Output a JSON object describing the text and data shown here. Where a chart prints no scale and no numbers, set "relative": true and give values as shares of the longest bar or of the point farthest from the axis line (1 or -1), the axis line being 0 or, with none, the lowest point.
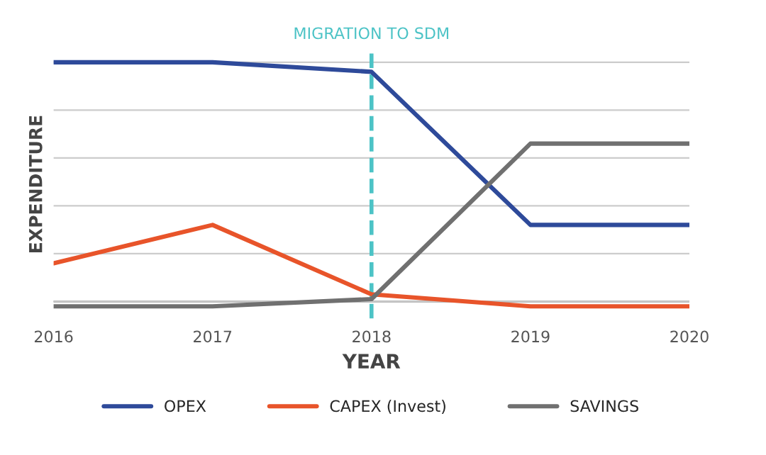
{
  "chart_data": {
    "type": "line",
    "relative": true,
    "xlabel": "YEAR",
    "ylabel": "EXPENDITURE",
    "categories": [
      "2016",
      "2017",
      "2018",
      "2019",
      "2020"
    ],
    "series": [
      {
        "name": "OPEX",
        "color": "#2e4a9a",
        "values": [
          1,
          1,
          0.96,
          0.32,
          0.32
        ]
      },
      {
        "name": "CAPEX (Invest)",
        "color": "#e8542a",
        "values": [
          0.16,
          0.32,
          0.03,
          -0.02,
          -0.02
        ]
      },
      {
        "name": "SAVINGS",
        "color": "#707070",
        "values": [
          -0.02,
          -0.02,
          0.01,
          0.66,
          0.66
        ]
      }
    ],
    "ref_lines": [
      {
        "axis": "x",
        "value": "2018",
        "label": "MIGRATION TO SDM",
        "color": "#4cc3c6",
        "line_style": "dashed"
      }
    ],
    "grid": "y",
    "legend": "bottom",
    "marker": "none",
    "line_style": "solid"
  }
}
